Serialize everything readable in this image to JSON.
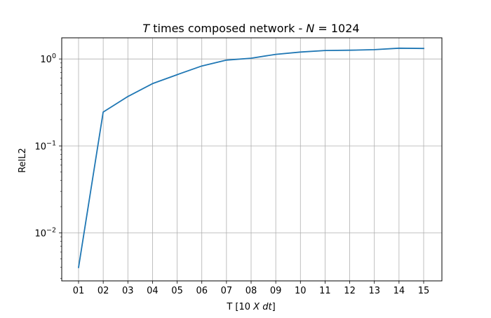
{
  "chart_data": {
    "type": "line",
    "title": "T times composed network - N = 1024",
    "title_parts": {
      "var_t": "T",
      "mid": " times composed network - ",
      "var_n": "N",
      "eq": " = 1024"
    },
    "xlabel": "T [10 X dt]",
    "xlabel_parts": {
      "pre": "T [10 ",
      "var_x": "X",
      "var_dt": "dt",
      "post": "]"
    },
    "ylabel": "RelL2",
    "y_scale": "log",
    "ylim": [
      0.0028,
      1.75
    ],
    "y_ticks": [
      {
        "value": 0.01,
        "mantissa": "10",
        "exponent": "−2"
      },
      {
        "value": 0.1,
        "mantissa": "10",
        "exponent": "−1"
      },
      {
        "value": 1,
        "mantissa": "10",
        "exponent": "0"
      }
    ],
    "categories": [
      "01",
      "02",
      "03",
      "04",
      "05",
      "06",
      "07",
      "08",
      "09",
      "10",
      "11",
      "12",
      "13",
      "14",
      "15"
    ],
    "series": [
      {
        "values": [
          0.004,
          0.245,
          0.37,
          0.52,
          0.66,
          0.83,
          0.97,
          1.02,
          1.13,
          1.2,
          1.25,
          1.26,
          1.28,
          1.33,
          1.32
        ],
        "color": "#1f77b4"
      }
    ],
    "grid": true,
    "legend": false
  }
}
